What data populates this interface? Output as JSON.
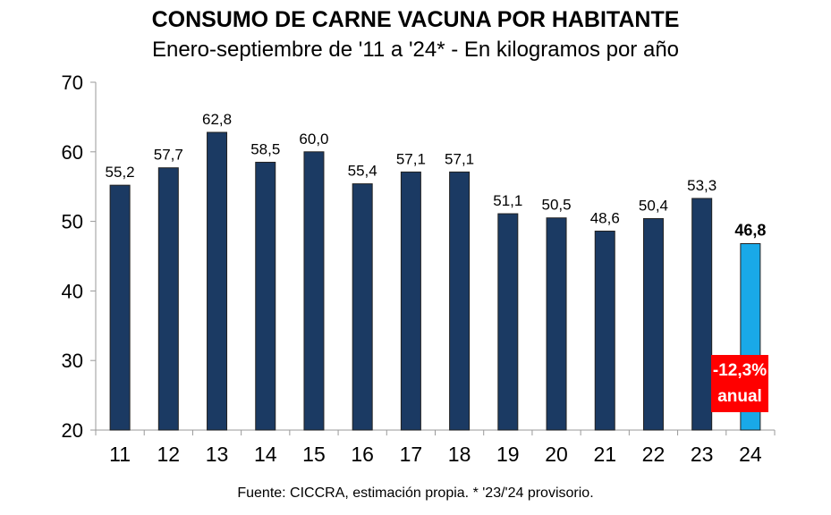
{
  "chart_data": {
    "type": "bar",
    "title": "CONSUMO DE CARNE VACUNA POR HABITANTE",
    "subtitle": "Enero-septiembre de '11 a '24* - En kilogramos por año",
    "categories": [
      "11",
      "12",
      "13",
      "14",
      "15",
      "16",
      "17",
      "18",
      "19",
      "20",
      "21",
      "22",
      "23",
      "24"
    ],
    "values": [
      55.2,
      57.7,
      62.8,
      58.5,
      60.0,
      55.4,
      57.1,
      57.1,
      51.1,
      50.5,
      48.6,
      50.4,
      53.3,
      46.8
    ],
    "data_labels": [
      "55,2",
      "57,7",
      "62,8",
      "58,5",
      "60,0",
      "55,4",
      "57,1",
      "57,1",
      "51,1",
      "50,5",
      "48,6",
      "50,4",
      "53,3",
      "46,8"
    ],
    "ylim": [
      20,
      70
    ],
    "yticks": [
      20,
      30,
      40,
      50,
      60,
      70
    ],
    "grid": false,
    "colors": {
      "bar": "#1b3a63",
      "highlight": "#19a9e8",
      "callout": "#ff0000"
    },
    "highlight_index": 13,
    "annotation": {
      "line1": "-12,3%",
      "line2": "anual"
    },
    "source": "Fuente: CICCRA, estimación propia. * '23/'24 provisorio."
  }
}
